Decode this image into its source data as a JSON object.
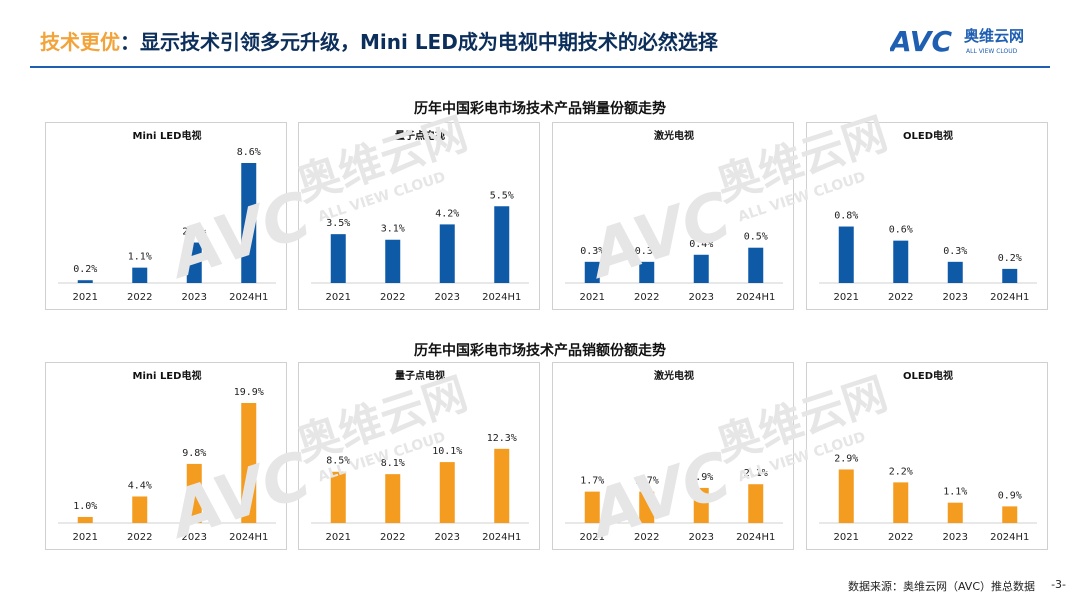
{
  "header": {
    "title_highlight": "技术更优",
    "title_rest": "：显示技术引领多元升级，Mini LED成为电视中期技术的必然选择",
    "logo_mark": "AVC",
    "logo_cn": "奥维云网",
    "logo_en": "ALL VIEW CLOUD"
  },
  "colors": {
    "volume_bar": "#0e5aa7",
    "value_bar": "#f39c1f",
    "rule": "#1f5fb2",
    "title_highlight": "#f2a33a"
  },
  "sections": {
    "volume_title": "历年中国彩电市场技术产品销量份额走势",
    "value_title": "历年中国彩电市场技术产品销额份额走势"
  },
  "chart_data": [
    {
      "type": "bar",
      "title": "Mini LED电视",
      "categories": [
        "2021",
        "2022",
        "2023",
        "2024H1"
      ],
      "values": [
        0.2,
        1.1,
        2.9,
        8.6
      ],
      "data_labels": [
        "0.2%",
        "1.1%",
        "2.9%",
        "8.6%"
      ],
      "ylim": [
        0,
        8.6
      ]
    },
    {
      "type": "bar",
      "title": "量子点电视",
      "categories": [
        "2021",
        "2022",
        "2023",
        "2024H1"
      ],
      "values": [
        3.5,
        3.1,
        4.2,
        5.5
      ],
      "data_labels": [
        "3.5%",
        "3.1%",
        "4.2%",
        "5.5%"
      ],
      "ylim": [
        0,
        8.6
      ]
    },
    {
      "type": "bar",
      "title": "激光电视",
      "categories": [
        "2021",
        "2022",
        "2023",
        "2024H1"
      ],
      "values": [
        0.3,
        0.3,
        0.4,
        0.5
      ],
      "data_labels": [
        "0.3%",
        "0.3%",
        "0.4%",
        "0.5%"
      ],
      "ylim": [
        0,
        1.7
      ]
    },
    {
      "type": "bar",
      "title": "OLED电视",
      "categories": [
        "2021",
        "2022",
        "2023",
        "2024H1"
      ],
      "values": [
        0.8,
        0.6,
        0.3,
        0.2
      ],
      "data_labels": [
        "0.8%",
        "0.6%",
        "0.3%",
        "0.2%"
      ],
      "ylim": [
        0,
        1.7
      ]
    },
    {
      "type": "bar",
      "title": "Mini LED电视",
      "categories": [
        "2021",
        "2022",
        "2023",
        "2024H1"
      ],
      "values": [
        1.0,
        4.4,
        9.8,
        19.9
      ],
      "data_labels": [
        "1.0%",
        "4.4%",
        "9.8%",
        "19.9%"
      ],
      "ylim": [
        0,
        19.9
      ]
    },
    {
      "type": "bar",
      "title": "量子点电视",
      "categories": [
        "2021",
        "2022",
        "2023",
        "2024H1"
      ],
      "values": [
        8.5,
        8.1,
        10.1,
        12.3
      ],
      "data_labels": [
        "8.5%",
        "8.1%",
        "10.1%",
        "12.3%"
      ],
      "ylim": [
        0,
        19.9
      ]
    },
    {
      "type": "bar",
      "title": "激光电视",
      "categories": [
        "2021",
        "2022",
        "2023",
        "2024H1"
      ],
      "values": [
        1.7,
        1.7,
        1.9,
        2.1
      ],
      "data_labels": [
        "1.7%",
        "1.7%",
        "1.9%",
        "2.1%"
      ],
      "ylim": [
        0,
        6.5
      ]
    },
    {
      "type": "bar",
      "title": "OLED电视",
      "categories": [
        "2021",
        "2022",
        "2023",
        "2024H1"
      ],
      "values": [
        2.9,
        2.2,
        1.1,
        0.9
      ],
      "data_labels": [
        "2.9%",
        "2.2%",
        "1.1%",
        "0.9%"
      ],
      "ylim": [
        0,
        6.5
      ]
    }
  ],
  "footer": {
    "source": "数据来源：奥维云网（AVC）推总数据",
    "page": "-3-"
  }
}
